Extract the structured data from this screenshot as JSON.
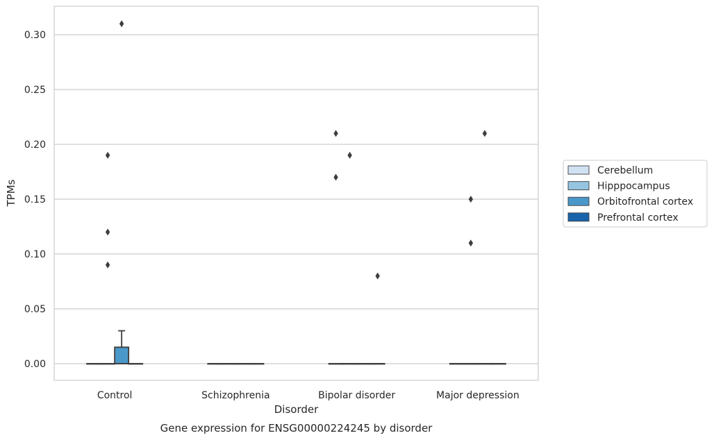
{
  "caption": "Gene expression for ENSG00000224245 by disorder",
  "chart_data": {
    "type": "box",
    "title": "",
    "xlabel": "Disorder",
    "ylabel": "TPMs",
    "categories": [
      "Control",
      "Schizophrenia",
      "Bipolar disorder",
      "Major depression"
    ],
    "ylim": [
      -0.015,
      0.326
    ],
    "yticks": [
      0.0,
      0.05,
      0.1,
      0.15,
      0.2,
      0.25,
      0.3
    ],
    "ytick_labels": [
      "0.00",
      "0.05",
      "0.10",
      "0.15",
      "0.20",
      "0.25",
      "0.30"
    ],
    "grid": "horizontal",
    "legend_position": "right",
    "series": [
      {
        "name": "Cerebellum",
        "color": "#d0e1f2",
        "boxes": [
          {
            "q1": 0,
            "median": 0,
            "q3": 0,
            "whisker_low": 0,
            "whisker_high": 0,
            "outliers": []
          },
          {
            "q1": 0,
            "median": 0,
            "q3": 0,
            "whisker_low": 0,
            "whisker_high": 0,
            "outliers": []
          },
          {
            "q1": 0,
            "median": 0,
            "q3": 0,
            "whisker_low": 0,
            "whisker_high": 0,
            "outliers": [
              0.21,
              0.17
            ]
          },
          {
            "q1": 0,
            "median": 0,
            "q3": 0,
            "whisker_low": 0,
            "whisker_high": 0,
            "outliers": []
          }
        ]
      },
      {
        "name": "Hipppocampus",
        "color": "#94c4df",
        "boxes": [
          {
            "q1": 0,
            "median": 0,
            "q3": 0,
            "whisker_low": 0,
            "whisker_high": 0,
            "outliers": [
              0.19,
              0.12,
              0.09
            ]
          },
          {
            "q1": 0,
            "median": 0,
            "q3": 0,
            "whisker_low": 0,
            "whisker_high": 0,
            "outliers": []
          },
          {
            "q1": 0,
            "median": 0,
            "q3": 0,
            "whisker_low": 0,
            "whisker_high": 0,
            "outliers": [
              0.19
            ]
          },
          {
            "q1": 0,
            "median": 0,
            "q3": 0,
            "whisker_low": 0,
            "whisker_high": 0,
            "outliers": [
              0.15,
              0.11
            ]
          }
        ]
      },
      {
        "name": "Orbitofrontal cortex",
        "color": "#4a98c9",
        "boxes": [
          {
            "q1": 0,
            "median": 0,
            "q3": 0.015,
            "whisker_low": 0,
            "whisker_high": 0.03,
            "outliers": [
              0.31
            ]
          },
          {
            "q1": 0,
            "median": 0,
            "q3": 0,
            "whisker_low": 0,
            "whisker_high": 0,
            "outliers": []
          },
          {
            "q1": 0,
            "median": 0,
            "q3": 0,
            "whisker_low": 0,
            "whisker_high": 0,
            "outliers": []
          },
          {
            "q1": 0,
            "median": 0,
            "q3": 0,
            "whisker_low": 0,
            "whisker_high": 0,
            "outliers": [
              0.21
            ]
          }
        ]
      },
      {
        "name": "Prefrontal cortex",
        "color": "#1764ab",
        "boxes": [
          {
            "q1": 0,
            "median": 0,
            "q3": 0,
            "whisker_low": 0,
            "whisker_high": 0,
            "outliers": []
          },
          {
            "q1": 0,
            "median": 0,
            "q3": 0,
            "whisker_low": 0,
            "whisker_high": 0,
            "outliers": []
          },
          {
            "q1": 0,
            "median": 0,
            "q3": 0,
            "whisker_low": 0,
            "whisker_high": 0,
            "outliers": [
              0.08
            ]
          },
          {
            "q1": 0,
            "median": 0,
            "q3": 0,
            "whisker_low": 0,
            "whisker_high": 0,
            "outliers": []
          }
        ]
      }
    ]
  }
}
